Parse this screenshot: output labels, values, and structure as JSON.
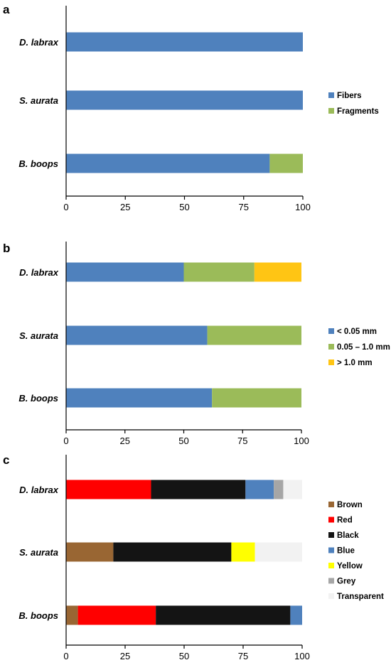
{
  "chart_data": [
    {
      "panel": "a",
      "type": "bar",
      "orientation": "horizontal",
      "stacked": true,
      "categories": [
        "D. labrax",
        "S. aurata",
        "B. boops"
      ],
      "series": [
        {
          "name": "Fibers",
          "color": "#4f81bd",
          "values": [
            100,
            100,
            86
          ]
        },
        {
          "name": "Fragments",
          "color": "#9bbb59",
          "values": [
            0,
            0,
            14
          ]
        }
      ],
      "xlim": [
        0,
        100
      ],
      "xticks": [
        0,
        25,
        50,
        75,
        100
      ],
      "xtick_labels": [
        "0",
        "25",
        "50",
        "75",
        "100"
      ],
      "legend": "right"
    },
    {
      "panel": "b",
      "type": "bar",
      "orientation": "horizontal",
      "stacked": true,
      "categories": [
        "D. labrax",
        "S. aurata",
        "B. boops"
      ],
      "series": [
        {
          "name": "< 0.05 mm",
          "color": "#4f81bd",
          "values": [
            50,
            60,
            62
          ]
        },
        {
          "name": "0.05 – 1.0 mm",
          "color": "#9bbb59",
          "values": [
            30,
            40,
            38
          ]
        },
        {
          "name": "> 1.0 mm",
          "color": "#ffc514",
          "values": [
            20,
            0,
            0
          ]
        }
      ],
      "xlim": [
        0,
        100
      ],
      "xticks": [
        0,
        25,
        50,
        75,
        100
      ],
      "xtick_labels": [
        "0",
        "25",
        "50",
        "75",
        "100"
      ],
      "legend": "right"
    },
    {
      "panel": "c",
      "type": "bar",
      "orientation": "horizontal",
      "stacked": true,
      "categories": [
        "D. labrax",
        "S. aurata",
        "B. boops"
      ],
      "series": [
        {
          "name": "Brown",
          "color": "#996633",
          "values": [
            0,
            20,
            5
          ]
        },
        {
          "name": "Red",
          "color": "#ff0000",
          "values": [
            36,
            0,
            33
          ]
        },
        {
          "name": "Black",
          "color": "#141414",
          "values": [
            40,
            50,
            57
          ]
        },
        {
          "name": "Blue",
          "color": "#4f81bd",
          "values": [
            12,
            0,
            5
          ]
        },
        {
          "name": "Yellow",
          "color": "#ffff00",
          "values": [
            0,
            10,
            0
          ]
        },
        {
          "name": "Grey",
          "color": "#a6a6a6",
          "values": [
            4,
            0,
            0
          ]
        },
        {
          "name": "Transparent",
          "color": "#f2f2f2",
          "values": [
            8,
            20,
            0
          ]
        }
      ],
      "xlim": [
        0,
        100
      ],
      "xticks": [
        0,
        25,
        50,
        75,
        100
      ],
      "xtick_labels": [
        "0",
        "25",
        "50",
        "75",
        "100"
      ],
      "legend": "right"
    }
  ]
}
